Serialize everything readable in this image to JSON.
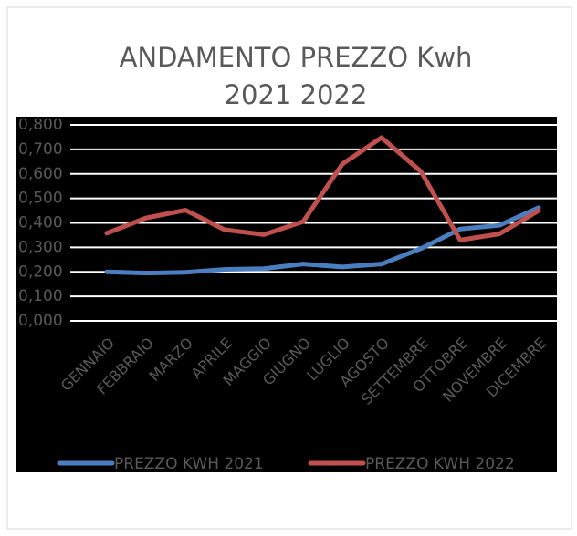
{
  "chart_data": {
    "type": "line",
    "title": "ANDAMENTO PREZZO Kwh",
    "subtitle": "2021 2022",
    "categories": [
      "GENNAIO",
      "FEBBRAIO",
      "MARZO",
      "APRILE",
      "MAGGIO",
      "GIUGNO",
      "LUGLIO",
      "AGOSTO",
      "SETTEMBRE",
      "OTTOBRE",
      "NOVEMBRE",
      "DICEMBRE"
    ],
    "series": [
      {
        "name": "PREZZO KWH 2021",
        "color": "#4a7ebf",
        "values": [
          0.2,
          0.195,
          0.198,
          0.21,
          0.213,
          0.232,
          0.22,
          0.232,
          0.295,
          0.375,
          0.39,
          0.462
        ]
      },
      {
        "name": "PREZZO KWH 2022",
        "color": "#c0504d",
        "values": [
          0.358,
          0.42,
          0.452,
          0.372,
          0.352,
          0.405,
          0.64,
          0.748,
          0.61,
          0.33,
          0.355,
          0.45
        ]
      }
    ],
    "ylim": [
      0,
      0.8
    ],
    "yticks": [
      {
        "value": 0,
        "label": "0,000"
      },
      {
        "value": 0.1,
        "label": "0,100"
      },
      {
        "value": 0.2,
        "label": "0,200"
      },
      {
        "value": 0.3,
        "label": "0,300"
      },
      {
        "value": 0.4,
        "label": "0,400"
      },
      {
        "value": 0.5,
        "label": "0,500"
      },
      {
        "value": 0.6,
        "label": "0,600"
      },
      {
        "value": 0.7,
        "label": "0,700"
      },
      {
        "value": 0.8,
        "label": "0,800"
      }
    ],
    "grid": true,
    "legend": "bottom"
  }
}
